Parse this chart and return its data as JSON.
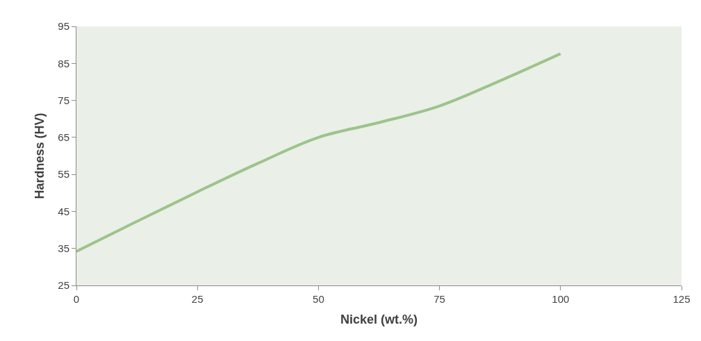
{
  "chart_data": {
    "type": "line",
    "xlabel": "Nickel (wt.%)",
    "ylabel": "Hardness (HV)",
    "x": [
      0,
      12.5,
      25,
      37.5,
      50,
      62.5,
      75,
      87.5,
      100
    ],
    "series": [
      {
        "color": "#9dc38a",
        "values": [
          34.2,
          42.3,
          50.3,
          58,
          65,
          69,
          73.5,
          80.3,
          87.6
        ]
      }
    ],
    "xlim": [
      0,
      125
    ],
    "xticks": [
      0,
      25,
      50,
      75,
      100,
      125
    ],
    "ylim": [
      25,
      95
    ],
    "yticks": [
      25,
      35,
      45,
      55,
      65,
      75,
      85,
      95
    ],
    "grid": false,
    "marker": "none",
    "line_style": "solid"
  }
}
